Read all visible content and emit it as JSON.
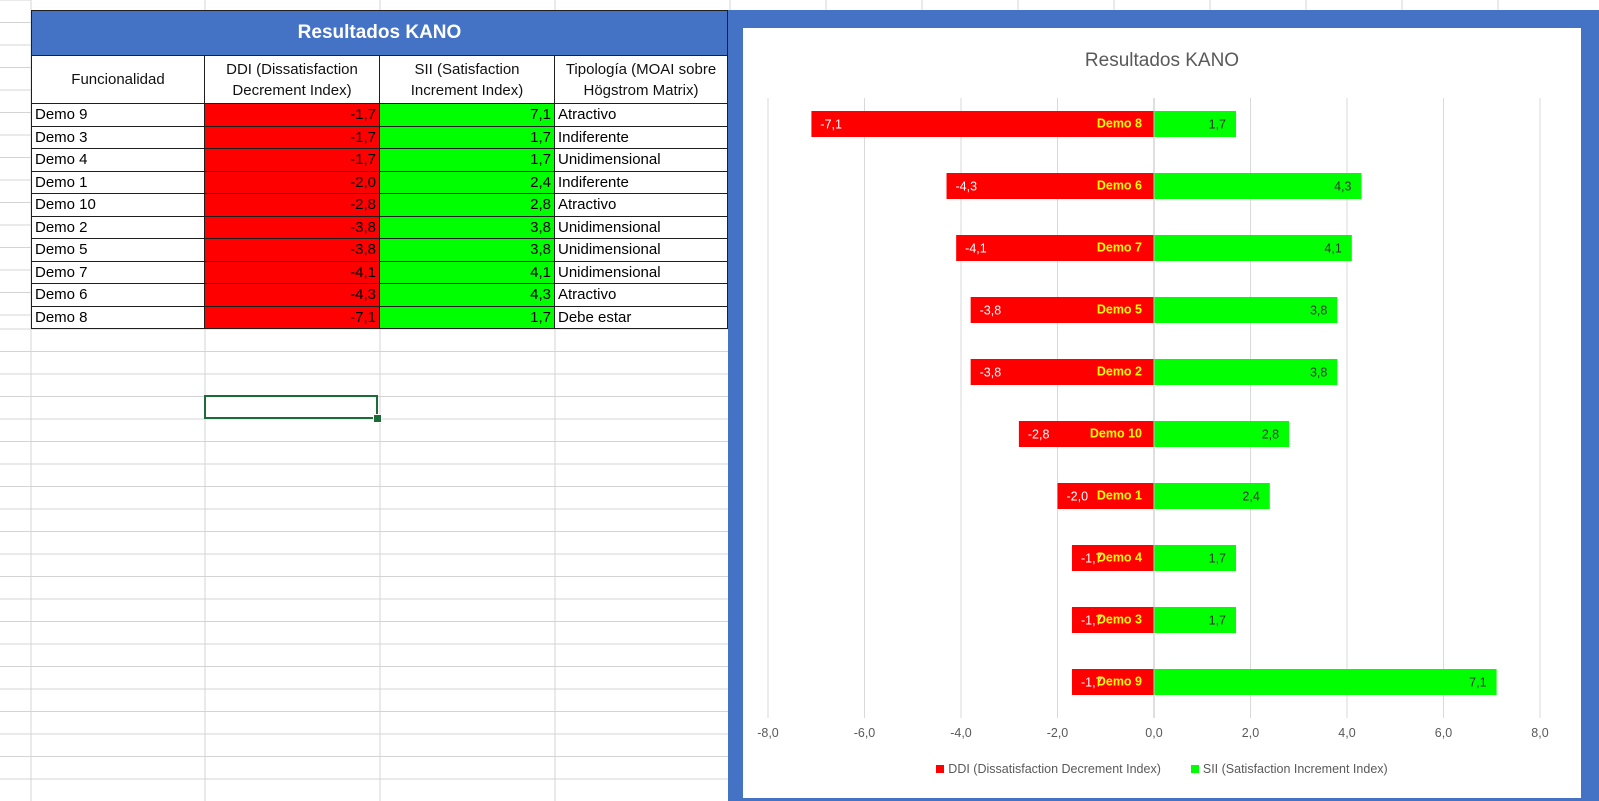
{
  "table": {
    "title": "Resultados KANO",
    "headers": {
      "funcionalidad": "Funcionalidad",
      "ddi": "DDI (Dissatisfaction Decrement Index)",
      "sii": "SII (Satisfaction Increment Index)",
      "tipologia": "Tipología (MOAI sobre Högstrom Matrix)"
    },
    "rows": [
      {
        "name": "Demo 9",
        "ddi": "-1,7",
        "sii": "7,1",
        "tipologia": "Atractivo"
      },
      {
        "name": "Demo 3",
        "ddi": "-1,7",
        "sii": "1,7",
        "tipologia": "Indiferente"
      },
      {
        "name": "Demo 4",
        "ddi": "-1,7",
        "sii": "1,7",
        "tipologia": "Unidimensional"
      },
      {
        "name": "Demo 1",
        "ddi": "-2,0",
        "sii": "2,4",
        "tipologia": "Indiferente"
      },
      {
        "name": "Demo 10",
        "ddi": "-2,8",
        "sii": "2,8",
        "tipologia": "Atractivo"
      },
      {
        "name": "Demo 2",
        "ddi": "-3,8",
        "sii": "3,8",
        "tipologia": "Unidimensional"
      },
      {
        "name": "Demo 5",
        "ddi": "-3,8",
        "sii": "3,8",
        "tipologia": "Unidimensional"
      },
      {
        "name": "Demo 7",
        "ddi": "-4,1",
        "sii": "4,1",
        "tipologia": "Unidimensional"
      },
      {
        "name": "Demo 6",
        "ddi": "-4,3",
        "sii": "4,3",
        "tipologia": "Atractivo"
      },
      {
        "name": "Demo 8",
        "ddi": "-7,1",
        "sii": "1,7",
        "tipologia": "Debe estar"
      }
    ]
  },
  "colors": {
    "header_blue": "#4472c4",
    "ddi_red": "#ff0000",
    "sii_green": "#00ff00",
    "category_label": "#ffff00",
    "selection": "#1e6b3a"
  },
  "chart_data": {
    "type": "bar",
    "orientation": "horizontal",
    "title": "Resultados KANO",
    "categories": [
      "Demo 8",
      "Demo 6",
      "Demo 7",
      "Demo 5",
      "Demo 2",
      "Demo 10",
      "Demo 1",
      "Demo 4",
      "Demo 3",
      "Demo 9"
    ],
    "series": [
      {
        "name": "DDI (Dissatisfaction Decrement Index)",
        "color": "#ff0000",
        "values": [
          -7.1,
          -4.3,
          -4.1,
          -3.8,
          -3.8,
          -2.8,
          -2.0,
          -1.7,
          -1.7,
          -1.7
        ],
        "labels": [
          "-7,1",
          "-4,3",
          "-4,1",
          "-3,8",
          "-3,8",
          "-2,8",
          "-2,0",
          "-1,7",
          "-1,7",
          "-1,7"
        ]
      },
      {
        "name": "SII (Satisfaction Increment Index)",
        "color": "#00ff00",
        "values": [
          1.7,
          4.3,
          4.1,
          3.8,
          3.8,
          2.8,
          2.4,
          1.7,
          1.7,
          7.1
        ],
        "labels": [
          "1,7",
          "4,3",
          "4,1",
          "3,8",
          "3,8",
          "2,8",
          "2,4",
          "1,7",
          "1,7",
          "7,1"
        ]
      }
    ],
    "xlim": [
      -8,
      8
    ],
    "xticks": [
      "-8,0",
      "-6,0",
      "-4,0",
      "-2,0",
      "0,0",
      "2,0",
      "4,0",
      "6,0",
      "8,0"
    ],
    "grid": "vertical",
    "legend": "bottom"
  }
}
